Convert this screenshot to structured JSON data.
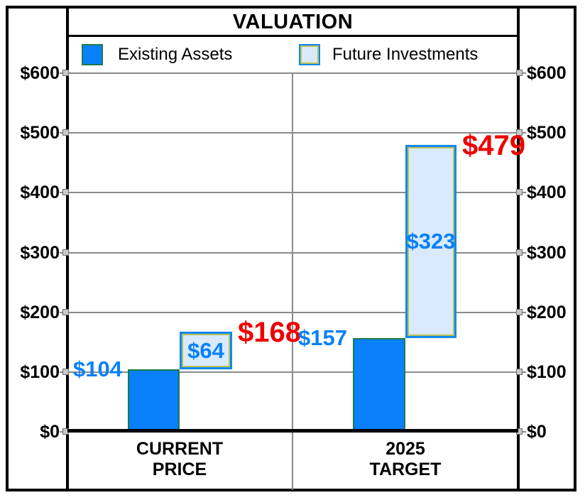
{
  "title": "VALUATION",
  "legend": {
    "items": [
      {
        "label": "Existing Assets",
        "color": "#0a80fa"
      },
      {
        "label": "Future Investments",
        "color": "#d8eafc"
      }
    ]
  },
  "colors": {
    "bar_blue": "#0a80fa",
    "bar_light_blue": "#d8eafc",
    "bar_border_green": "#1e7a4c",
    "bar_border_blue": "#1188ee",
    "bar_inner_olive": "#b9c257",
    "value_label_blue": "#0a80fa",
    "total_label_red": "#ee0000",
    "gridline_gray": "#8a8a8a"
  },
  "y_axis": {
    "tick_labels": [
      "$600",
      "$500",
      "$400",
      "$300",
      "$200",
      "$100",
      "$0"
    ],
    "min": 0,
    "max": 600,
    "step": 100
  },
  "chart_data": {
    "type": "bar",
    "subtype": "stacked_waterfall",
    "title": "VALUATION",
    "categories": [
      [
        "CURRENT",
        "PRICE"
      ],
      [
        "2025",
        "TARGET"
      ]
    ],
    "series": [
      {
        "name": "Existing Assets",
        "values": [
          104,
          157
        ]
      },
      {
        "name": "Future Investments",
        "values": [
          64,
          323
        ]
      }
    ],
    "totals": [
      168,
      479
    ],
    "segment_labels": [
      [
        "$104",
        "$157"
      ],
      [
        "$64",
        "$323"
      ]
    ],
    "total_labels": [
      "$168",
      "$479"
    ],
    "ylim": [
      0,
      600
    ],
    "grid": true,
    "legend_position": "top",
    "dual_y_axis": true
  }
}
